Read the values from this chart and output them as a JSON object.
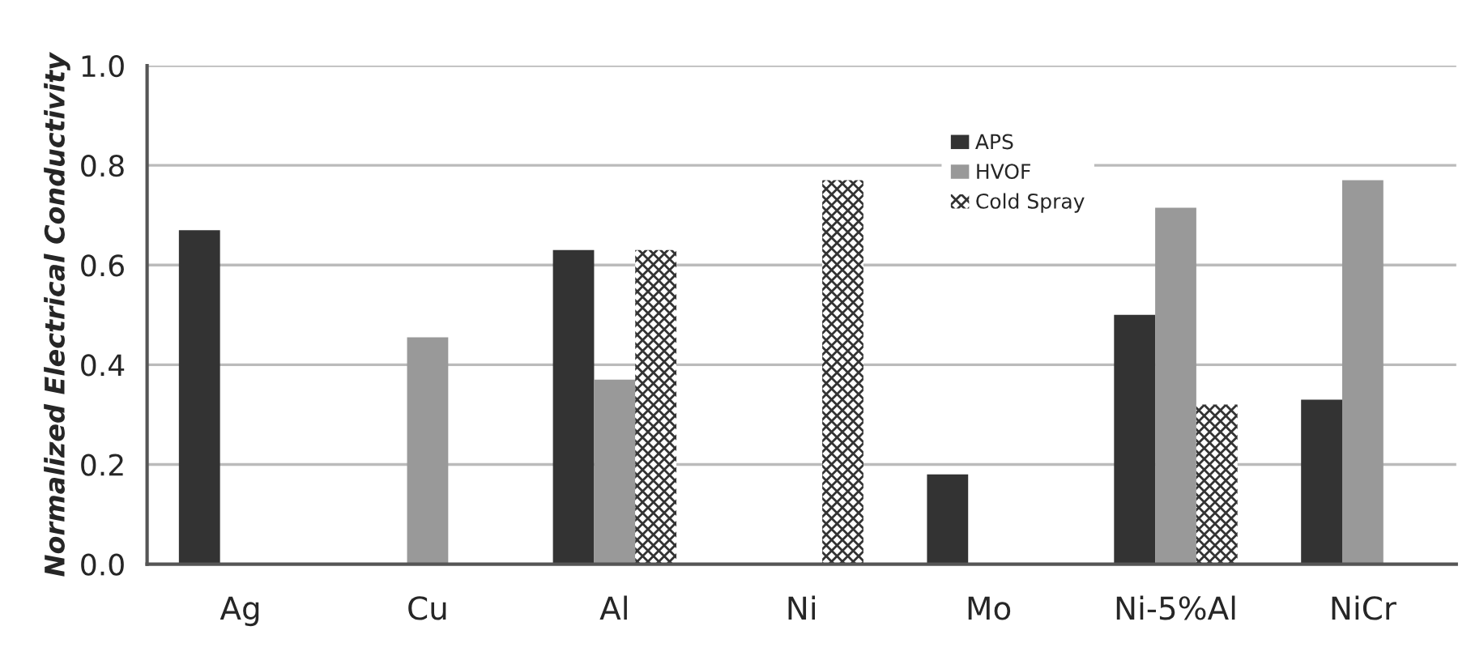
{
  "chart_data": {
    "type": "bar",
    "ylabel": "Normalized Electrical Conductivity",
    "categories": [
      "Ag",
      "Cu",
      "Al",
      "Ni",
      "Mo",
      "Ni-5%Al",
      "NiCr"
    ],
    "series": [
      {
        "name": "APS",
        "color": "#333333",
        "values": [
          0.67,
          null,
          0.63,
          null,
          0.18,
          0.5,
          0.33
        ]
      },
      {
        "name": "HVOF",
        "color": "#999999",
        "values": [
          null,
          0.455,
          0.37,
          null,
          null,
          0.715,
          0.77
        ]
      },
      {
        "name": "Cold Spray",
        "color": "#333333",
        "values": [
          null,
          null,
          0.63,
          0.77,
          null,
          0.32,
          null
        ]
      }
    ],
    "ylim": [
      0,
      1.0
    ],
    "yticks": [
      {
        "value": 0,
        "label": "0.0"
      },
      0.2,
      0.4,
      0.6,
      0.8,
      {
        "value": 1.0,
        "label": "1.0"
      }
    ],
    "grid": "y",
    "legend": "top"
  }
}
